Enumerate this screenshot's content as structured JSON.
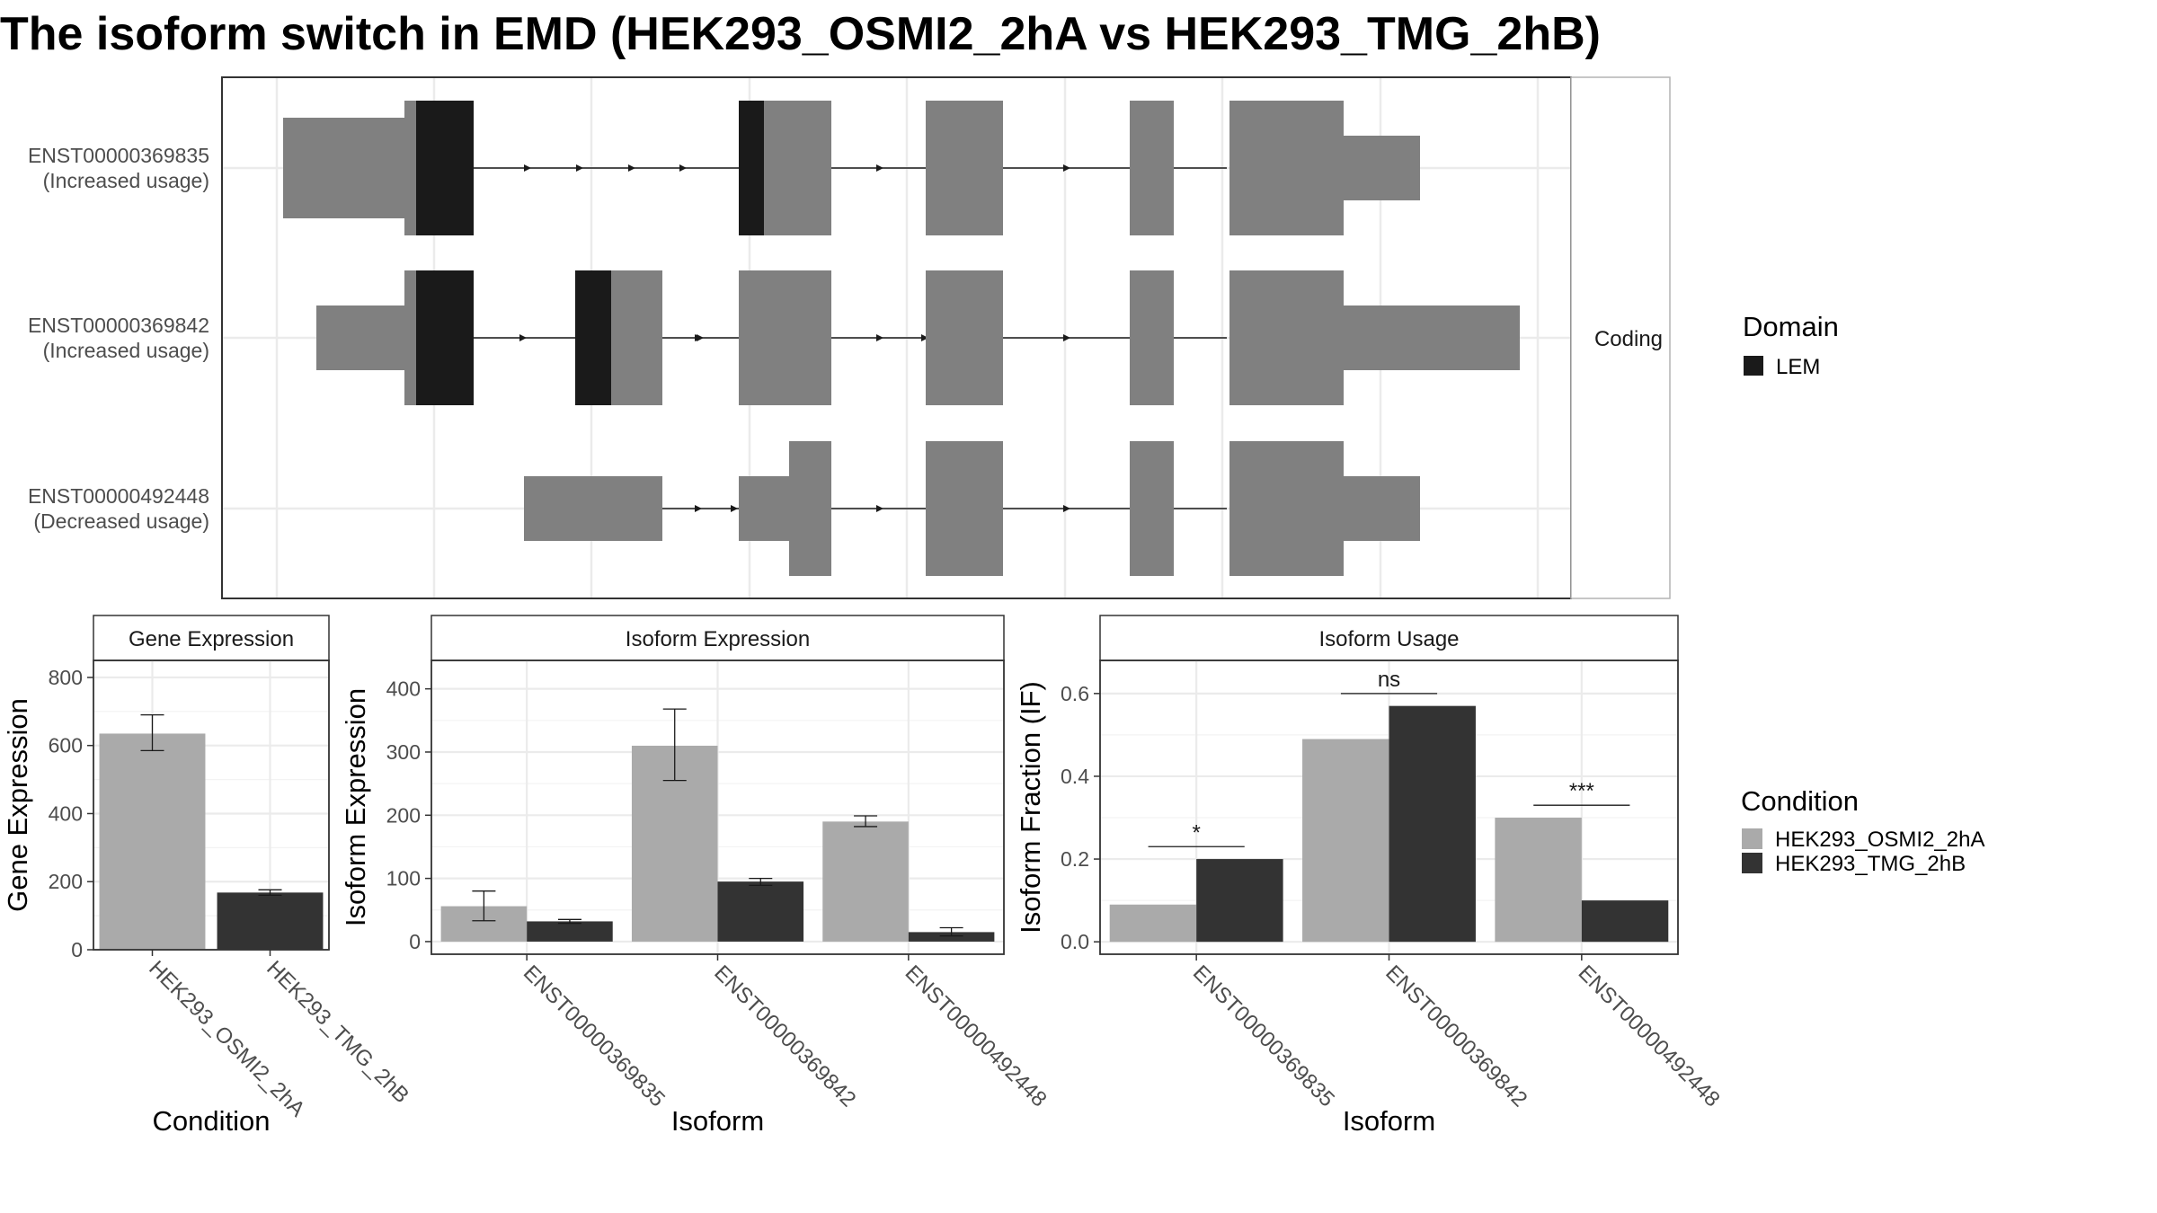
{
  "title": "The isoform switch in EMD (HEK293_OSMI2_2hA vs HEK293_TMG_2hB)",
  "colors": {
    "cond_a": "#aaaaaa",
    "cond_b": "#333333",
    "exon": "#808080",
    "domain_lem": "#1a1a1a",
    "grid": "#ebebeb",
    "strip": "#ffffff",
    "panel_border": "#333333"
  },
  "chart_data": [
    {
      "type": "gene-structure",
      "facet_label": "Coding",
      "isoforms": [
        {
          "id": "ENST00000369835",
          "status": "(Increased usage)"
        },
        {
          "id": "ENST00000369842",
          "status": "(Increased usage)"
        },
        {
          "id": "ENST00000492448",
          "status": "(Decreased usage)"
        }
      ],
      "legend": {
        "title": "Domain",
        "items": [
          {
            "label": "LEM",
            "color": "#1a1a1a"
          }
        ]
      }
    },
    {
      "type": "bar",
      "strip_title": "Gene Expression",
      "xlabel": "Condition",
      "ylabel": "Gene Expression",
      "ylim": [
        0,
        850
      ],
      "yticks": [
        0,
        200,
        400,
        600,
        800
      ],
      "categories": [
        "HEK293_OSMI2_2hA",
        "HEK293_TMG_2hB"
      ],
      "values": [
        635,
        168
      ],
      "errors": [
        [
          585,
          690
        ],
        [
          160,
          176
        ]
      ]
    },
    {
      "type": "bar",
      "strip_title": "Isoform Expression",
      "xlabel": "Isoform",
      "ylabel": "Isoform Expression",
      "ylim": [
        -20,
        445
      ],
      "yticks": [
        0,
        100,
        200,
        300,
        400
      ],
      "categories": [
        "ENST00000369835",
        "ENST00000369842",
        "ENST00000492448"
      ],
      "series": [
        {
          "name": "HEK293_OSMI2_2hA",
          "values": [
            56,
            310,
            190
          ],
          "errors": [
            [
              33,
              80
            ],
            [
              255,
              368
            ],
            [
              182,
              199
            ]
          ]
        },
        {
          "name": "HEK293_TMG_2hB",
          "values": [
            32,
            95,
            15
          ],
          "errors": [
            [
              29,
              35
            ],
            [
              89,
              100
            ],
            [
              9,
              22
            ]
          ]
        }
      ]
    },
    {
      "type": "bar",
      "strip_title": "Isoform Usage",
      "xlabel": "Isoform",
      "ylabel": "Isoform Fraction (IF)",
      "ylim": [
        -0.03,
        0.68
      ],
      "yticks": [
        "0.0",
        "0.2",
        "0.4",
        "0.6"
      ],
      "categories": [
        "ENST00000369835",
        "ENST00000369842",
        "ENST00000492448"
      ],
      "series": [
        {
          "name": "HEK293_OSMI2_2hA",
          "values": [
            0.09,
            0.49,
            0.3
          ]
        },
        {
          "name": "HEK293_TMG_2hB",
          "values": [
            0.2,
            0.57,
            0.1
          ]
        }
      ],
      "significance": [
        "*",
        "ns",
        "***"
      ]
    }
  ],
  "condition_legend": {
    "title": "Condition",
    "items": [
      {
        "label": "HEK293_OSMI2_2hA",
        "color": "#aaaaaa"
      },
      {
        "label": "HEK293_TMG_2hB",
        "color": "#333333"
      }
    ]
  }
}
